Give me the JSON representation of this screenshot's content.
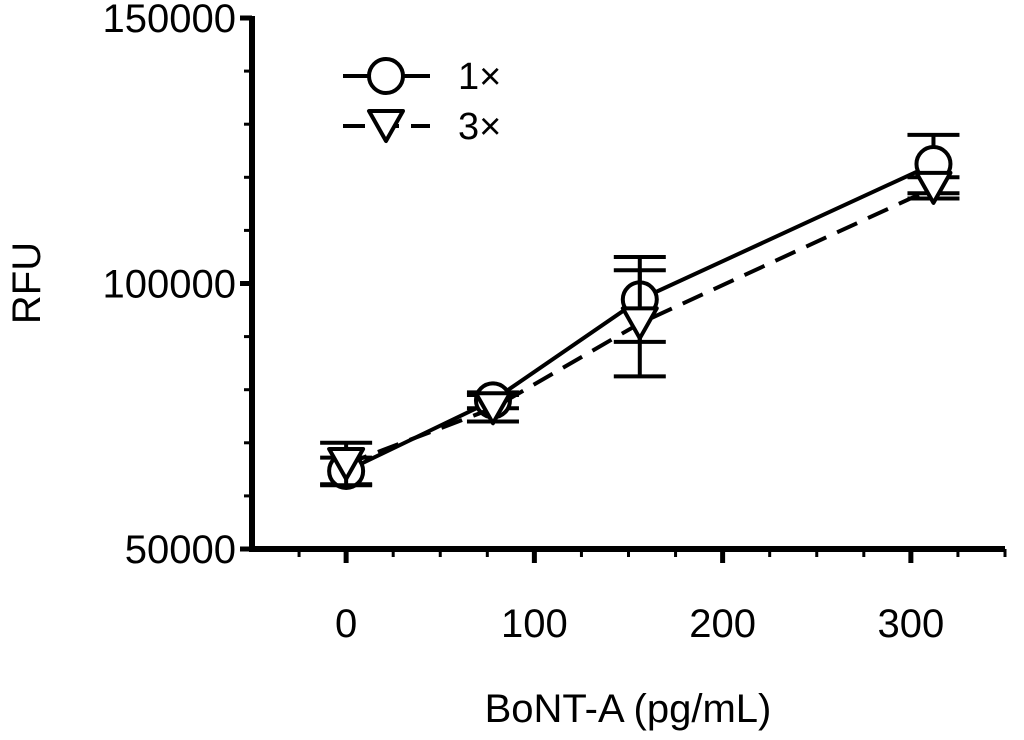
{
  "chart_data": {
    "type": "line",
    "xlabel": "BoNT-A (pg/mL)",
    "ylabel": "RFU",
    "xlim": [
      -50,
      350
    ],
    "ylim": [
      50000,
      150000
    ],
    "x_ticks": [
      0,
      100,
      200,
      300
    ],
    "x_tick_labels": [
      "0",
      "100",
      "200",
      "300"
    ],
    "y_ticks": [
      50000,
      100000,
      150000
    ],
    "y_tick_labels": [
      "50000",
      "100000",
      "150000"
    ],
    "legend_position": "top-left",
    "grid": false,
    "series": [
      {
        "name": "1×",
        "marker": "circle",
        "line_style": "solid",
        "x": [
          0,
          78,
          156,
          312
        ],
        "y": [
          64700,
          78000,
          97000,
          122500
        ],
        "error": [
          2500,
          1500,
          8000,
          5500
        ]
      },
      {
        "name": "3×",
        "marker": "triangle-down",
        "line_style": "dashed",
        "x": [
          0,
          78,
          156,
          312
        ],
        "y": [
          66000,
          76500,
          92500,
          118000
        ],
        "error": [
          4000,
          2500,
          10000,
          2000
        ]
      }
    ]
  }
}
